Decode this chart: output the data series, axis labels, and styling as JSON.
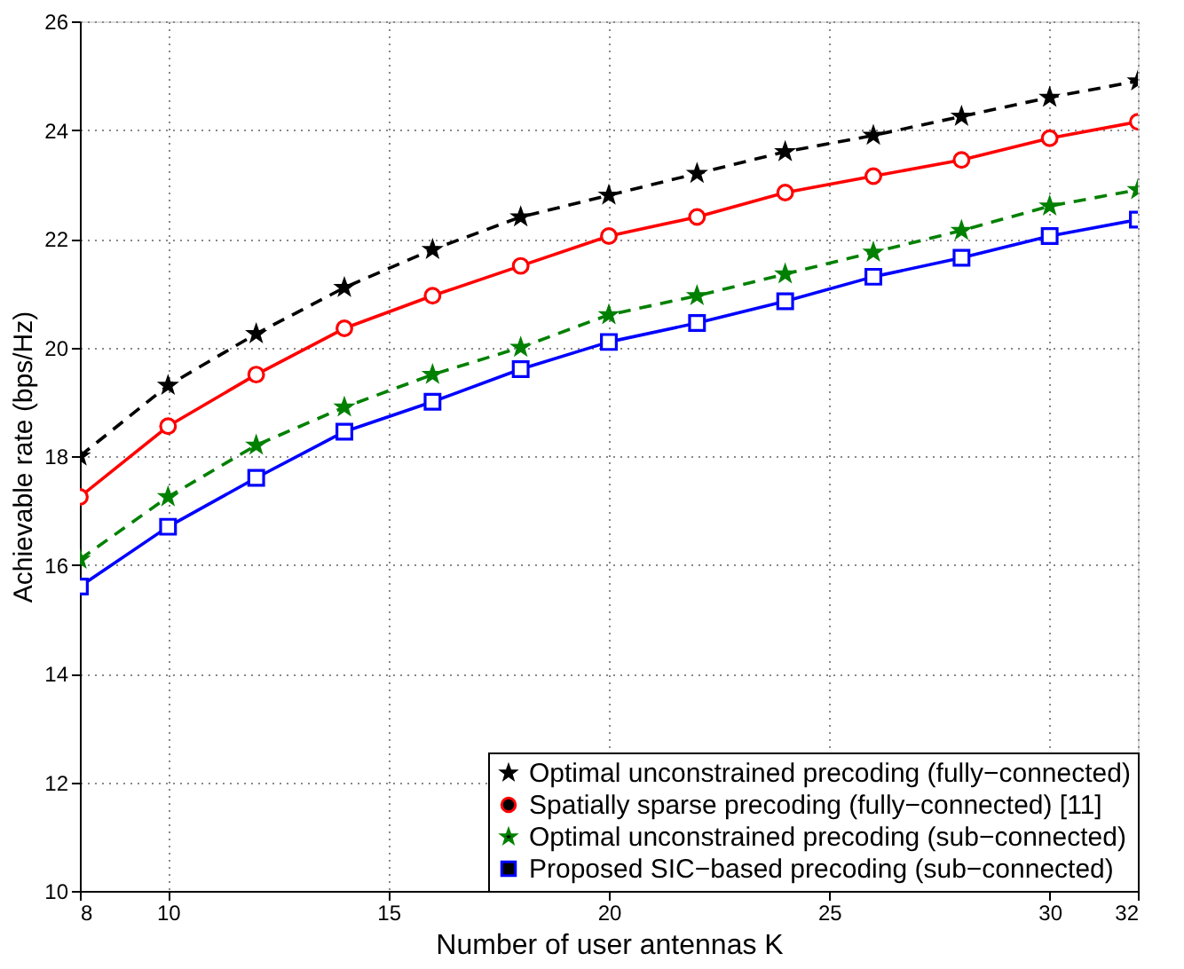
{
  "chart_data": {
    "type": "line",
    "xlabel": "Number of user antennas K",
    "ylabel": "Achievable rate (bps/Hz)",
    "x": [
      8,
      10,
      12,
      14,
      16,
      18,
      20,
      22,
      24,
      26,
      28,
      30,
      32
    ],
    "xlim": [
      8,
      32
    ],
    "xticks": [
      8,
      10,
      15,
      20,
      25,
      30,
      32
    ],
    "ylim": [
      10,
      26
    ],
    "yticks": [
      10,
      12,
      14,
      16,
      18,
      20,
      22,
      24,
      26
    ],
    "grid": true,
    "legend": "bottom right",
    "series": [
      {
        "name": "Optimal unconstrained precoding (fully−connected)",
        "color": "#000000",
        "marker": "star",
        "line_style": "dashed",
        "values": [
          18.0,
          19.3,
          20.25,
          21.1,
          21.8,
          22.4,
          22.8,
          23.2,
          23.6,
          23.9,
          24.25,
          24.6,
          24.9
        ]
      },
      {
        "name": "Spatially sparse precoding (fully−connected) [11]",
        "color": "#ff0000",
        "marker": "circle",
        "line_style": "solid",
        "values": [
          17.25,
          18.55,
          19.5,
          20.35,
          20.95,
          21.5,
          22.05,
          22.4,
          22.85,
          23.15,
          23.45,
          23.85,
          24.15
        ]
      },
      {
        "name": "Optimal unconstrained precoding (sub−connected)",
        "color": "#008000",
        "marker": "star",
        "line_style": "dashed",
        "values": [
          16.1,
          17.25,
          18.2,
          18.9,
          19.5,
          20.0,
          20.6,
          20.95,
          21.35,
          21.75,
          22.15,
          22.6,
          22.9
        ]
      },
      {
        "name": "Proposed SIC−based precoding (sub−connected)",
        "color": "#0000ff",
        "marker": "square",
        "line_style": "solid",
        "values": [
          15.6,
          16.7,
          17.6,
          18.45,
          19.0,
          19.6,
          20.1,
          20.45,
          20.85,
          21.3,
          21.65,
          22.05,
          22.35
        ]
      }
    ]
  }
}
